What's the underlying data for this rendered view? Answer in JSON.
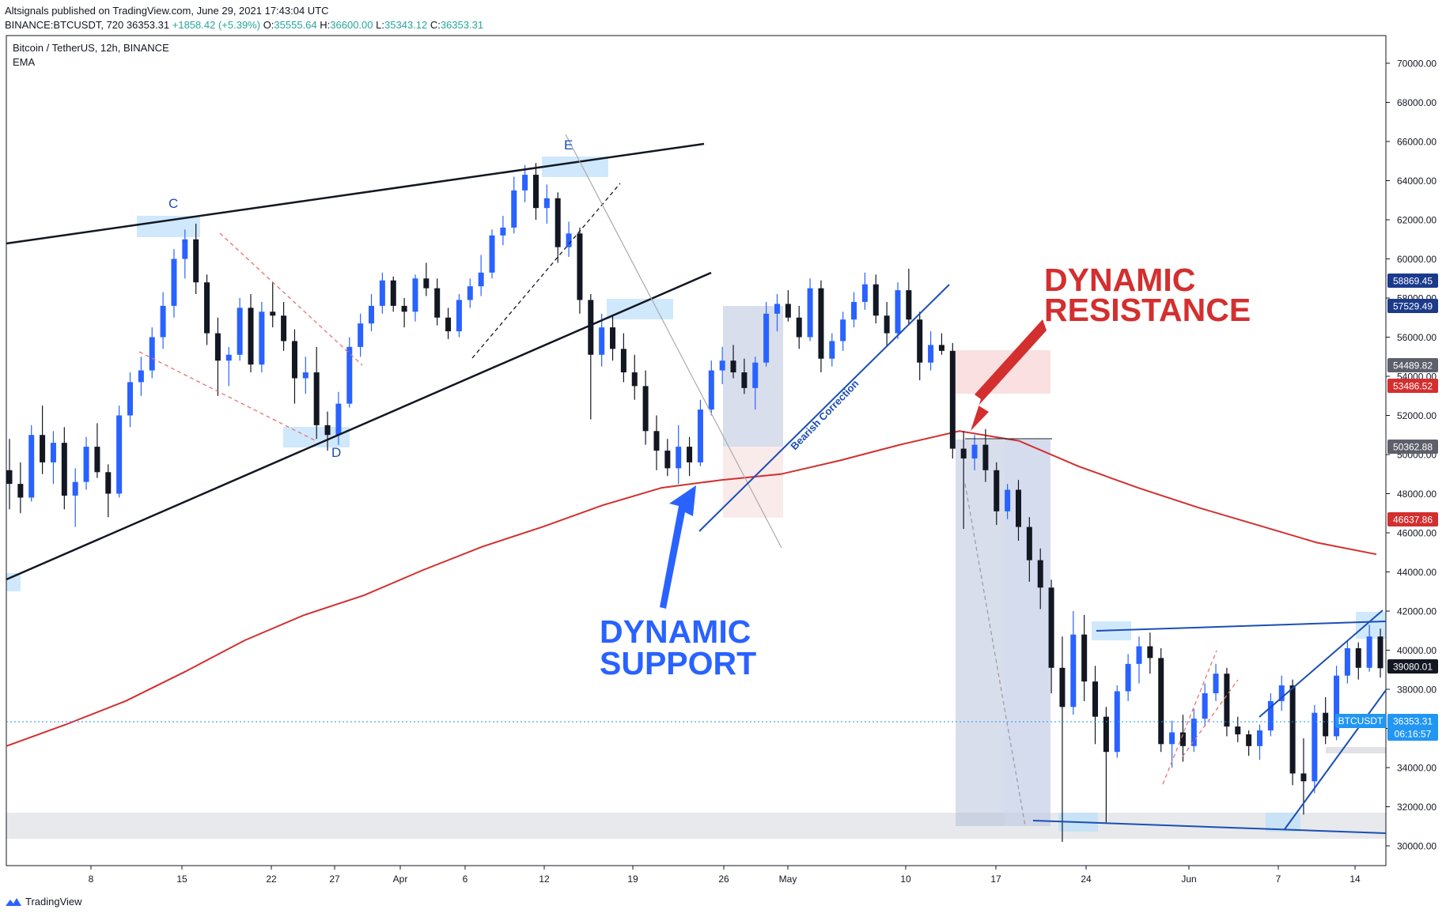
{
  "header": {
    "published": "Altsignals published on TradingView.com, June 29, 2021 17:43:04 UTC",
    "symbol_line": "BINANCE:BTCUSDT, 720",
    "last": "36353.31",
    "change": "+1858.42 (+5.39%)",
    "o_label": "O:",
    "o": "35555.64",
    "h_label": "H:",
    "h": "36600.00",
    "l_label": "L:",
    "l": "35343.12",
    "c_label": "C:",
    "c": "36353.31"
  },
  "legend": {
    "title": "Bitcoin / TetherUS, 12h, BINANCE",
    "indicator": "EMA"
  },
  "footer": {
    "brand": "TradingView"
  },
  "annotations": {
    "resistance_line1": "DYNAMIC",
    "resistance_line2": "RESISTANCE",
    "support_line1": "DYNAMIC",
    "support_line2": "SUPPORT",
    "bearish": "Bearish Correction",
    "c": "C",
    "d": "D",
    "e": "E"
  },
  "colors": {
    "bull": "#2962ff",
    "bear": "#131722",
    "ema": "#d32f2f",
    "resistance_text": "#d32f2f",
    "support_text": "#2962ff",
    "trend_blue": "#1b4fb3"
  },
  "chart_data": {
    "type": "candlestick",
    "title": "Bitcoin / TetherUS, 12h, BINANCE",
    "y_range": [
      29500,
      71000
    ],
    "y_ticks": [
      30000,
      32000,
      34000,
      36000,
      38000,
      40000,
      42000,
      44000,
      46000,
      48000,
      50000,
      52000,
      54000,
      56000,
      58000,
      60000,
      62000,
      64000,
      66000,
      68000,
      70000
    ],
    "x_tick_labels": [
      "8",
      "15",
      "22",
      "27",
      "Apr",
      "6",
      "12",
      "19",
      "26",
      "May",
      "10",
      "17",
      "24",
      "Jun",
      "7",
      "14"
    ],
    "price_badges": [
      {
        "value": "58869.45",
        "color": "#1b3a8c"
      },
      {
        "value": "57529.49",
        "color": "#1b3a8c"
      },
      {
        "value": "54489.82",
        "color": "#5d606b"
      },
      {
        "value": "53486.52",
        "color": "#d32f2f"
      },
      {
        "value": "50362.88",
        "color": "#5d606b"
      },
      {
        "value": "46637.86",
        "color": "#d32f2f"
      },
      {
        "value": "39080.01",
        "color": "#131722"
      },
      {
        "value": "BTCUSDT",
        "color": "#2196f3"
      },
      {
        "value": "36353.31",
        "color": "#2196f3"
      },
      {
        "value": "06:16:57",
        "color": "#2196f3"
      }
    ],
    "ema_series": [
      {
        "t": 0,
        "v": 35100
      },
      {
        "t": 10,
        "v": 36200
      },
      {
        "t": 20,
        "v": 37400
      },
      {
        "t": 30,
        "v": 38900
      },
      {
        "t": 40,
        "v": 40500
      },
      {
        "t": 50,
        "v": 41800
      },
      {
        "t": 60,
        "v": 42800
      },
      {
        "t": 70,
        "v": 44100
      },
      {
        "t": 80,
        "v": 45300
      },
      {
        "t": 90,
        "v": 46300
      },
      {
        "t": 100,
        "v": 47400
      },
      {
        "t": 110,
        "v": 48300
      },
      {
        "t": 120,
        "v": 48700
      },
      {
        "t": 130,
        "v": 49000
      },
      {
        "t": 140,
        "v": 49700
      },
      {
        "t": 150,
        "v": 50500
      },
      {
        "t": 160,
        "v": 51200
      },
      {
        "t": 170,
        "v": 50700
      },
      {
        "t": 180,
        "v": 49400
      },
      {
        "t": 190,
        "v": 48300
      },
      {
        "t": 200,
        "v": 47300
      },
      {
        "t": 210,
        "v": 46400
      },
      {
        "t": 220,
        "v": 45500
      },
      {
        "t": 230,
        "v": 44900
      }
    ],
    "candles": [
      [
        49200,
        50800,
        47200,
        48500
      ],
      [
        48500,
        49600,
        47000,
        47800
      ],
      [
        47800,
        51500,
        47600,
        51000
      ],
      [
        51000,
        52500,
        49000,
        49600
      ],
      [
        49600,
        51200,
        48500,
        50600
      ],
      [
        50600,
        51400,
        47200,
        47900
      ],
      [
        47900,
        49300,
        46300,
        48600
      ],
      [
        48600,
        50900,
        48200,
        50400
      ],
      [
        50400,
        51600,
        48800,
        49100
      ],
      [
        49100,
        49500,
        46800,
        48000
      ],
      [
        48000,
        52500,
        47800,
        52000
      ],
      [
        52000,
        54200,
        51400,
        53700
      ],
      [
        53700,
        55000,
        53000,
        54300
      ],
      [
        54300,
        56500,
        53900,
        56000
      ],
      [
        56000,
        58300,
        55400,
        57600
      ],
      [
        57600,
        60500,
        57000,
        60000
      ],
      [
        60000,
        61500,
        59000,
        61000
      ],
      [
        61000,
        61800,
        58200,
        58800
      ],
      [
        58800,
        59200,
        55600,
        56200
      ],
      [
        56200,
        57000,
        53000,
        54800
      ],
      [
        54800,
        55500,
        53500,
        55100
      ],
      [
        55100,
        58000,
        54800,
        57500
      ],
      [
        57500,
        58200,
        54200,
        54600
      ],
      [
        54600,
        57800,
        54200,
        57300
      ],
      [
        57300,
        58800,
        56500,
        57100
      ],
      [
        57100,
        57800,
        55300,
        55800
      ],
      [
        55800,
        56400,
        52600,
        53900
      ],
      [
        53900,
        55000,
        53100,
        54200
      ],
      [
        54200,
        55500,
        50800,
        51500
      ],
      [
        51500,
        52200,
        50200,
        51000
      ],
      [
        51000,
        53200,
        50500,
        52600
      ],
      [
        52600,
        56000,
        52400,
        55500
      ],
      [
        55500,
        57200,
        55000,
        56700
      ],
      [
        56700,
        58200,
        56300,
        57600
      ],
      [
        57600,
        59300,
        57200,
        58900
      ],
      [
        58900,
        59100,
        57300,
        57600
      ],
      [
        57600,
        58000,
        56500,
        57300
      ],
      [
        57300,
        59200,
        56800,
        59000
      ],
      [
        59000,
        59800,
        58100,
        58500
      ],
      [
        58500,
        59000,
        56600,
        57000
      ],
      [
        57000,
        57500,
        55900,
        56300
      ],
      [
        56300,
        58200,
        56000,
        57900
      ],
      [
        57900,
        59000,
        57500,
        58600
      ],
      [
        58600,
        60200,
        58100,
        59300
      ],
      [
        59300,
        61500,
        59000,
        61200
      ],
      [
        61200,
        62200,
        60700,
        61600
      ],
      [
        61600,
        64200,
        61300,
        63500
      ],
      [
        63500,
        64800,
        62900,
        64300
      ],
      [
        64300,
        64900,
        62000,
        62600
      ],
      [
        62600,
        63800,
        61800,
        63100
      ],
      [
        63100,
        63400,
        59800,
        60600
      ],
      [
        60600,
        61900,
        60100,
        61300
      ],
      [
        61300,
        61600,
        57200,
        57900
      ],
      [
        57900,
        58200,
        51800,
        55100
      ],
      [
        55100,
        57200,
        54500,
        56500
      ],
      [
        56500,
        57100,
        54800,
        55400
      ],
      [
        55400,
        56200,
        53700,
        54200
      ],
      [
        54200,
        55100,
        52800,
        53500
      ],
      [
        53500,
        54300,
        50500,
        51200
      ],
      [
        51200,
        52000,
        49200,
        50200
      ],
      [
        50200,
        50800,
        48900,
        49300
      ],
      [
        49300,
        51500,
        48500,
        50400
      ],
      [
        50400,
        50900,
        48900,
        49600
      ],
      [
        49600,
        52800,
        49400,
        52300
      ],
      [
        52300,
        54800,
        52000,
        54300
      ],
      [
        54300,
        55500,
        53600,
        54800
      ],
      [
        54800,
        55600,
        53900,
        54200
      ],
      [
        54200,
        54900,
        53100,
        53400
      ],
      [
        53400,
        55000,
        52300,
        54700
      ],
      [
        54700,
        57800,
        54500,
        57200
      ],
      [
        57200,
        58200,
        56300,
        57700
      ],
      [
        57700,
        58400,
        56800,
        57000
      ],
      [
        57000,
        57600,
        55400,
        56000
      ],
      [
        56000,
        59000,
        55800,
        58500
      ],
      [
        58500,
        58900,
        54200,
        54900
      ],
      [
        54900,
        56200,
        54500,
        55800
      ],
      [
        55800,
        57300,
        55300,
        56900
      ],
      [
        56900,
        58300,
        56500,
        57800
      ],
      [
        57800,
        59300,
        57400,
        58700
      ],
      [
        58700,
        59200,
        56700,
        57100
      ],
      [
        57100,
        57800,
        55500,
        56200
      ],
      [
        56200,
        58800,
        55900,
        58400
      ],
      [
        58400,
        59500,
        56600,
        56900
      ],
      [
        56900,
        57300,
        53800,
        54700
      ],
      [
        54700,
        56300,
        54300,
        55600
      ],
      [
        55600,
        56200,
        55100,
        55300
      ],
      [
        55300,
        55700,
        49800,
        50300
      ],
      [
        50300,
        51200,
        46200,
        49800
      ],
      [
        49800,
        51000,
        49200,
        50500
      ],
      [
        50500,
        51300,
        48600,
        49200
      ],
      [
        49200,
        49600,
        46400,
        47100
      ],
      [
        47100,
        48500,
        46700,
        48200
      ],
      [
        48200,
        48700,
        45600,
        46300
      ],
      [
        46300,
        46800,
        43500,
        44600
      ],
      [
        44600,
        45200,
        42100,
        43200
      ],
      [
        43200,
        43600,
        37800,
        39100
      ],
      [
        39100,
        40700,
        30200,
        37100
      ],
      [
        37100,
        42000,
        36700,
        40800
      ],
      [
        40800,
        41800,
        37400,
        38400
      ],
      [
        38400,
        39200,
        35200,
        36600
      ],
      [
        36600,
        37100,
        31200,
        34800
      ],
      [
        34800,
        38200,
        34500,
        37900
      ],
      [
        37900,
        39800,
        37400,
        39300
      ],
      [
        39300,
        40700,
        38300,
        40200
      ],
      [
        40200,
        40900,
        38800,
        39600
      ],
      [
        39600,
        40100,
        34800,
        35200
      ],
      [
        35200,
        36400,
        34000,
        35800
      ],
      [
        35800,
        36700,
        34300,
        35100
      ],
      [
        35100,
        37000,
        34800,
        36500
      ],
      [
        36500,
        38300,
        36100,
        37800
      ],
      [
        37800,
        39300,
        37400,
        38800
      ],
      [
        38800,
        39100,
        35600,
        36100
      ],
      [
        36100,
        36600,
        35300,
        35700
      ],
      [
        35700,
        35900,
        34600,
        35100
      ],
      [
        35100,
        36200,
        34400,
        35900
      ],
      [
        35900,
        37800,
        35600,
        37400
      ],
      [
        37400,
        38700,
        36900,
        38200
      ],
      [
        38200,
        38500,
        33100,
        33700
      ],
      [
        33700,
        35500,
        31600,
        33300
      ],
      [
        33300,
        37200,
        32700,
        36800
      ],
      [
        36800,
        37600,
        35200,
        35600
      ],
      [
        35600,
        39200,
        35400,
        38700
      ],
      [
        38700,
        40500,
        38300,
        40100
      ],
      [
        40100,
        40400,
        38500,
        39100
      ],
      [
        39100,
        41300,
        38900,
        40700
      ],
      [
        40700,
        41100,
        38600,
        39080
      ]
    ]
  }
}
